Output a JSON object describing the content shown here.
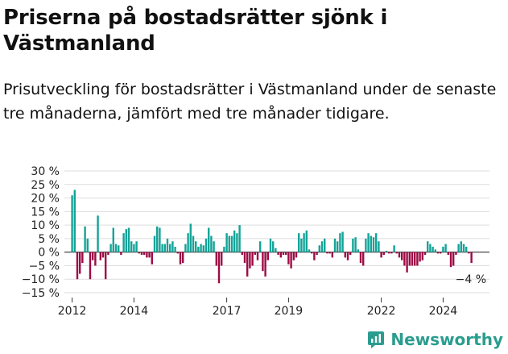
{
  "title": "Priserna på bostadsrätter sjönk i Västmanland",
  "subtitle": "Prisutveckling för bostadsrätter i Västmanland under de senaste tre månaderna, jämfört med tre månader tidigare.",
  "brand": {
    "name": "Newsworthy",
    "color": "#2a9d8f"
  },
  "colors": {
    "positive": "#14a398",
    "negative": "#9e0a45",
    "grid": "#dddddd",
    "zero": "#333333"
  },
  "chart_data": {
    "type": "bar",
    "title": "Priserna på bostadsrätter sjönk i Västmanland",
    "xlabel": "",
    "ylabel": "",
    "ylim": [
      -15,
      30
    ],
    "ytick_values": [
      30,
      25,
      20,
      15,
      10,
      5,
      0,
      -5,
      -10,
      -15
    ],
    "ytick_labels": [
      "30 %",
      "25 %",
      "20 %",
      "15 %",
      "10 %",
      "5 %",
      "0 %",
      "−5 %",
      "−10 %",
      "−15 %"
    ],
    "xtick_years": [
      2012,
      2014,
      2017,
      2019,
      2022,
      2024
    ],
    "xlim": [
      2011.75,
      2025.5
    ],
    "grid": true,
    "legend": "none",
    "annotation": "−4 %",
    "x": [
      2012.0,
      2012.083,
      2012.167,
      2012.25,
      2012.333,
      2012.417,
      2012.5,
      2012.583,
      2012.667,
      2012.75,
      2012.833,
      2012.917,
      2013.0,
      2013.083,
      2013.167,
      2013.25,
      2013.333,
      2013.417,
      2013.5,
      2013.583,
      2013.667,
      2013.75,
      2013.833,
      2013.917,
      2014.0,
      2014.083,
      2014.167,
      2014.25,
      2014.333,
      2014.417,
      2014.5,
      2014.583,
      2014.667,
      2014.75,
      2014.833,
      2014.917,
      2015.0,
      2015.083,
      2015.167,
      2015.25,
      2015.333,
      2015.417,
      2015.5,
      2015.583,
      2015.667,
      2015.75,
      2015.833,
      2015.917,
      2016.0,
      2016.083,
      2016.167,
      2016.25,
      2016.333,
      2016.417,
      2016.5,
      2016.583,
      2016.667,
      2016.75,
      2016.833,
      2016.917,
      2017.0,
      2017.083,
      2017.167,
      2017.25,
      2017.333,
      2017.417,
      2017.5,
      2017.583,
      2017.667,
      2017.75,
      2017.833,
      2017.917,
      2018.0,
      2018.083,
      2018.167,
      2018.25,
      2018.333,
      2018.417,
      2018.5,
      2018.583,
      2018.667,
      2018.75,
      2018.833,
      2018.917,
      2019.0,
      2019.083,
      2019.167,
      2019.25,
      2019.333,
      2019.417,
      2019.5,
      2019.583,
      2019.667,
      2019.75,
      2019.833,
      2019.917,
      2020.0,
      2020.083,
      2020.167,
      2020.25,
      2020.333,
      2020.417,
      2020.5,
      2020.583,
      2020.667,
      2020.75,
      2020.833,
      2020.917,
      2021.0,
      2021.083,
      2021.167,
      2021.25,
      2021.333,
      2021.417,
      2021.5,
      2021.583,
      2021.667,
      2021.75,
      2021.833,
      2021.917,
      2022.0,
      2022.083,
      2022.167,
      2022.25,
      2022.333,
      2022.417,
      2022.5,
      2022.583,
      2022.667,
      2022.75,
      2022.833,
      2022.917,
      2023.0,
      2023.083,
      2023.167,
      2023.25,
      2023.333,
      2023.417,
      2023.5,
      2023.583,
      2023.667,
      2023.75,
      2023.833,
      2023.917,
      2024.0,
      2024.083,
      2024.167,
      2024.25,
      2024.333,
      2024.417,
      2024.5,
      2024.583,
      2024.667,
      2024.75,
      2024.833,
      2024.917
    ],
    "values": [
      21,
      23,
      -10,
      -8,
      -4,
      9.5,
      5,
      -10,
      -3,
      -5,
      13.5,
      -3,
      -2,
      -10,
      -1,
      3,
      9,
      3,
      2.5,
      -1,
      7,
      8.5,
      9,
      4,
      3,
      4,
      -0.5,
      -1,
      -1,
      -2,
      -2,
      -4.5,
      6,
      9.5,
      9,
      3,
      3,
      5,
      3,
      4,
      2,
      -0.5,
      -4.5,
      -4,
      3,
      7,
      10.5,
      6,
      4,
      2,
      3,
      2.5,
      5,
      9,
      6,
      4,
      -5,
      -11.5,
      -5,
      2,
      7,
      6,
      6,
      8,
      7,
      10,
      -1,
      -4,
      -9,
      -6,
      -5,
      -1,
      -3,
      4,
      -7,
      -9,
      -3,
      5,
      4,
      1.5,
      -1,
      -2,
      -1,
      -1,
      -4.5,
      -6,
      -3,
      -2,
      7,
      5,
      7,
      8,
      1,
      -0.5,
      -3,
      -1,
      2.5,
      4,
      5,
      -0.5,
      -0.5,
      -2,
      5,
      4,
      7,
      7.5,
      -2,
      -3,
      -1,
      5,
      5.5,
      1,
      -4,
      -5,
      5,
      7,
      6,
      5.5,
      7,
      4,
      -2,
      -1,
      0.5,
      -0.5,
      -0.5,
      2.5,
      -0.5,
      -2,
      -3,
      -5,
      -7.5,
      -5,
      -5,
      -5,
      -5,
      -3.5,
      -3,
      -1,
      4,
      3,
      2,
      1,
      -0.5,
      -0.5,
      2,
      3,
      -1,
      -5.5,
      -5,
      -1,
      3,
      4,
      3,
      2,
      -0.5,
      -4
    ]
  }
}
